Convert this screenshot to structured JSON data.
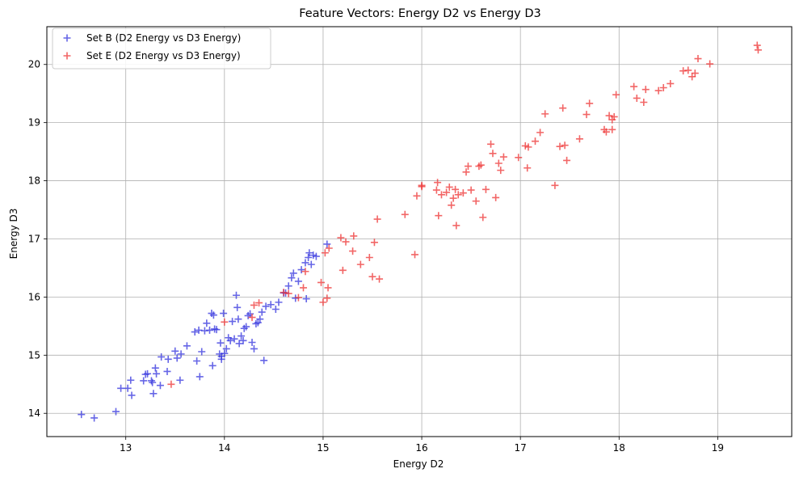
{
  "chart_data": {
    "type": "scatter",
    "title": "Feature Vectors: Energy D2 vs Energy D3",
    "xlabel": "Energy D2",
    "ylabel": "Energy D3",
    "xlim": [
      12.2,
      19.75
    ],
    "ylim": [
      13.6,
      20.65
    ],
    "xticks": [
      13,
      14,
      15,
      16,
      17,
      18,
      19
    ],
    "yticks": [
      14,
      15,
      16,
      17,
      18,
      19,
      20
    ],
    "grid": true,
    "marker": "+",
    "legend_position": "top-left",
    "series": [
      {
        "name": "Set B (D2 Energy vs D3 Energy)",
        "color": "#3333dd",
        "points": [
          [
            12.55,
            13.98
          ],
          [
            12.68,
            13.92
          ],
          [
            12.9,
            14.03
          ],
          [
            12.95,
            14.43
          ],
          [
            13.02,
            14.43
          ],
          [
            13.05,
            14.57
          ],
          [
            13.06,
            14.31
          ],
          [
            13.18,
            14.56
          ],
          [
            13.2,
            14.67
          ],
          [
            13.22,
            14.68
          ],
          [
            13.26,
            14.56
          ],
          [
            13.27,
            14.53
          ],
          [
            13.28,
            14.34
          ],
          [
            13.3,
            14.78
          ],
          [
            13.31,
            14.68
          ],
          [
            13.35,
            14.48
          ],
          [
            13.36,
            14.97
          ],
          [
            13.42,
            14.72
          ],
          [
            13.43,
            14.93
          ],
          [
            13.5,
            15.07
          ],
          [
            13.52,
            14.95
          ],
          [
            13.55,
            14.57
          ],
          [
            13.56,
            15.02
          ],
          [
            13.62,
            15.16
          ],
          [
            13.7,
            15.4
          ],
          [
            13.72,
            14.9
          ],
          [
            13.74,
            15.43
          ],
          [
            13.75,
            14.63
          ],
          [
            13.77,
            15.06
          ],
          [
            13.8,
            15.42
          ],
          [
            13.82,
            15.55
          ],
          [
            13.85,
            15.43
          ],
          [
            13.88,
            14.82
          ],
          [
            13.89,
            15.69
          ],
          [
            13.9,
            15.45
          ],
          [
            13.92,
            15.44
          ],
          [
            13.95,
            15.02
          ],
          [
            13.96,
            15.21
          ],
          [
            13.97,
            14.93
          ],
          [
            13.99,
            15.72
          ],
          [
            14.0,
            15.03
          ],
          [
            14.02,
            15.11
          ],
          [
            14.04,
            15.3
          ],
          [
            14.06,
            15.25
          ],
          [
            14.08,
            15.58
          ],
          [
            14.1,
            15.28
          ],
          [
            14.12,
            16.03
          ],
          [
            14.13,
            15.82
          ],
          [
            14.14,
            15.62
          ],
          [
            14.15,
            15.2
          ],
          [
            14.17,
            15.33
          ],
          [
            14.19,
            15.25
          ],
          [
            14.2,
            15.46
          ],
          [
            14.22,
            15.49
          ],
          [
            14.24,
            15.68
          ],
          [
            14.26,
            15.71
          ],
          [
            14.28,
            15.22
          ],
          [
            14.3,
            15.11
          ],
          [
            14.32,
            15.54
          ],
          [
            14.34,
            15.56
          ],
          [
            14.36,
            15.62
          ],
          [
            14.38,
            15.74
          ],
          [
            14.4,
            14.91
          ],
          [
            14.42,
            15.84
          ],
          [
            14.47,
            15.87
          ],
          [
            14.52,
            15.79
          ],
          [
            14.55,
            15.91
          ],
          [
            14.6,
            16.07
          ],
          [
            14.65,
            16.19
          ],
          [
            14.68,
            16.33
          ],
          [
            14.7,
            16.41
          ],
          [
            14.72,
            15.98
          ],
          [
            14.75,
            16.27
          ],
          [
            14.78,
            16.47
          ],
          [
            14.82,
            16.59
          ],
          [
            14.85,
            16.68
          ],
          [
            14.86,
            16.76
          ],
          [
            14.88,
            16.56
          ],
          [
            14.9,
            16.72
          ],
          [
            14.93,
            16.7
          ],
          [
            15.04,
            16.91
          ],
          [
            13.97,
            14.98
          ],
          [
            13.87,
            15.72
          ],
          [
            14.62,
            16.07
          ],
          [
            14.83,
            15.97
          ]
        ]
      },
      {
        "name": "Set E (D2 Energy vs D3 Energy)",
        "color": "#ee3333",
        "points": [
          [
            13.46,
            14.5
          ],
          [
            14.0,
            15.57
          ],
          [
            14.28,
            15.65
          ],
          [
            14.3,
            15.86
          ],
          [
            14.35,
            15.9
          ],
          [
            14.6,
            16.08
          ],
          [
            14.65,
            16.06
          ],
          [
            14.75,
            15.99
          ],
          [
            14.8,
            16.16
          ],
          [
            14.82,
            16.44
          ],
          [
            14.98,
            16.25
          ],
          [
            15.0,
            15.91
          ],
          [
            15.02,
            16.76
          ],
          [
            15.04,
            15.98
          ],
          [
            15.05,
            16.16
          ],
          [
            15.06,
            16.84
          ],
          [
            15.18,
            17.02
          ],
          [
            15.2,
            16.46
          ],
          [
            15.23,
            16.95
          ],
          [
            15.3,
            16.79
          ],
          [
            15.31,
            17.05
          ],
          [
            15.38,
            16.56
          ],
          [
            15.47,
            16.68
          ],
          [
            15.5,
            16.35
          ],
          [
            15.52,
            16.94
          ],
          [
            15.55,
            17.34
          ],
          [
            15.57,
            16.31
          ],
          [
            15.83,
            17.42
          ],
          [
            15.93,
            16.73
          ],
          [
            15.95,
            17.74
          ],
          [
            16.0,
            17.9
          ],
          [
            16.15,
            17.84
          ],
          [
            16.16,
            17.97
          ],
          [
            16.17,
            17.4
          ],
          [
            16.2,
            17.76
          ],
          [
            16.25,
            17.8
          ],
          [
            16.28,
            17.89
          ],
          [
            16.3,
            17.58
          ],
          [
            16.32,
            17.7
          ],
          [
            16.34,
            17.85
          ],
          [
            16.35,
            17.23
          ],
          [
            16.37,
            17.76
          ],
          [
            16.42,
            17.79
          ],
          [
            16.45,
            18.15
          ],
          [
            16.47,
            18.25
          ],
          [
            16.5,
            17.84
          ],
          [
            16.55,
            17.65
          ],
          [
            16.58,
            18.25
          ],
          [
            16.6,
            18.27
          ],
          [
            16.62,
            17.37
          ],
          [
            16.65,
            17.85
          ],
          [
            16.7,
            18.63
          ],
          [
            16.72,
            18.47
          ],
          [
            16.75,
            17.71
          ],
          [
            16.78,
            18.3
          ],
          [
            16.8,
            18.18
          ],
          [
            16.83,
            18.41
          ],
          [
            16.98,
            18.4
          ],
          [
            17.05,
            18.6
          ],
          [
            17.08,
            18.58
          ],
          [
            17.07,
            18.22
          ],
          [
            17.15,
            18.68
          ],
          [
            17.2,
            18.83
          ],
          [
            17.25,
            19.15
          ],
          [
            17.35,
            17.92
          ],
          [
            17.4,
            18.59
          ],
          [
            17.43,
            19.25
          ],
          [
            17.45,
            18.61
          ],
          [
            17.47,
            18.35
          ],
          [
            17.6,
            18.72
          ],
          [
            17.67,
            19.14
          ],
          [
            17.7,
            19.33
          ],
          [
            17.85,
            18.88
          ],
          [
            17.87,
            18.84
          ],
          [
            17.9,
            19.12
          ],
          [
            17.93,
            19.05
          ],
          [
            17.95,
            19.1
          ],
          [
            17.97,
            19.48
          ],
          [
            18.15,
            19.62
          ],
          [
            18.18,
            19.42
          ],
          [
            18.25,
            19.35
          ],
          [
            18.27,
            19.57
          ],
          [
            18.4,
            19.55
          ],
          [
            18.45,
            19.6
          ],
          [
            18.52,
            19.67
          ],
          [
            18.65,
            19.89
          ],
          [
            18.7,
            19.9
          ],
          [
            18.74,
            19.79
          ],
          [
            18.77,
            19.85
          ],
          [
            18.8,
            20.1
          ],
          [
            18.92,
            20.01
          ],
          [
            19.4,
            20.33
          ],
          [
            19.41,
            20.25
          ],
          [
            16.0,
            17.92
          ],
          [
            17.93,
            18.88
          ]
        ]
      }
    ]
  }
}
